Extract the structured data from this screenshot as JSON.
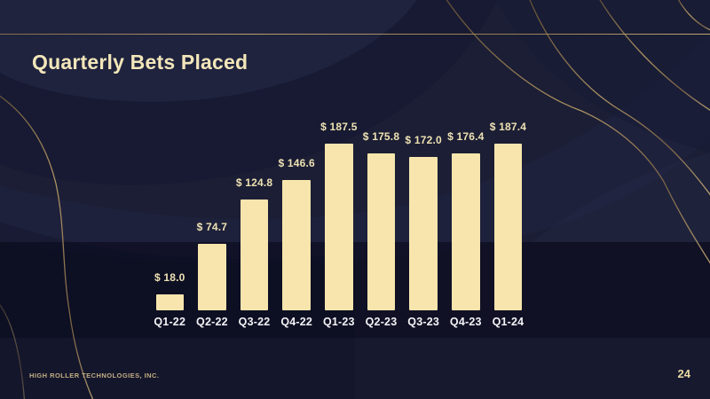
{
  "slide": {
    "title": "Quarterly Bets Placed",
    "footer": "HIGH ROLLER TECHNOLOGIES, INC.",
    "page_number": "24"
  },
  "colors": {
    "background": "#1b1e34",
    "background_band": "#10122a",
    "bar": "#f7e5ad",
    "title_text": "#f2e6ba",
    "value_label_text": "#eee1b3",
    "category_label_text": "#f3f3f6",
    "accent_gold_line": "#c3a670",
    "footer_text": "#c2ad84",
    "page_number_text": "#ead9a4"
  },
  "chart_data": {
    "type": "bar",
    "title": "Quarterly Bets Placed",
    "categories": [
      "Q1-22",
      "Q2-22",
      "Q3-22",
      "Q4-22",
      "Q1-23",
      "Q2-23",
      "Q3-23",
      "Q4-23",
      "Q1-24"
    ],
    "values": [
      18.0,
      74.7,
      124.8,
      146.6,
      187.5,
      175.8,
      172.0,
      176.4,
      187.4
    ],
    "value_labels": [
      "$ 18.0",
      "$ 74.7",
      "$ 124.8",
      "$ 146.6",
      "$ 187.5",
      "$ 175.8",
      "$ 172.0",
      "$ 176.4",
      "$ 187.4"
    ],
    "xlabel": "",
    "ylabel": "",
    "ylim": [
      0,
      200
    ],
    "grid": false,
    "legend": false,
    "axis_lines": false,
    "bar_color": "#f7e5ad"
  }
}
